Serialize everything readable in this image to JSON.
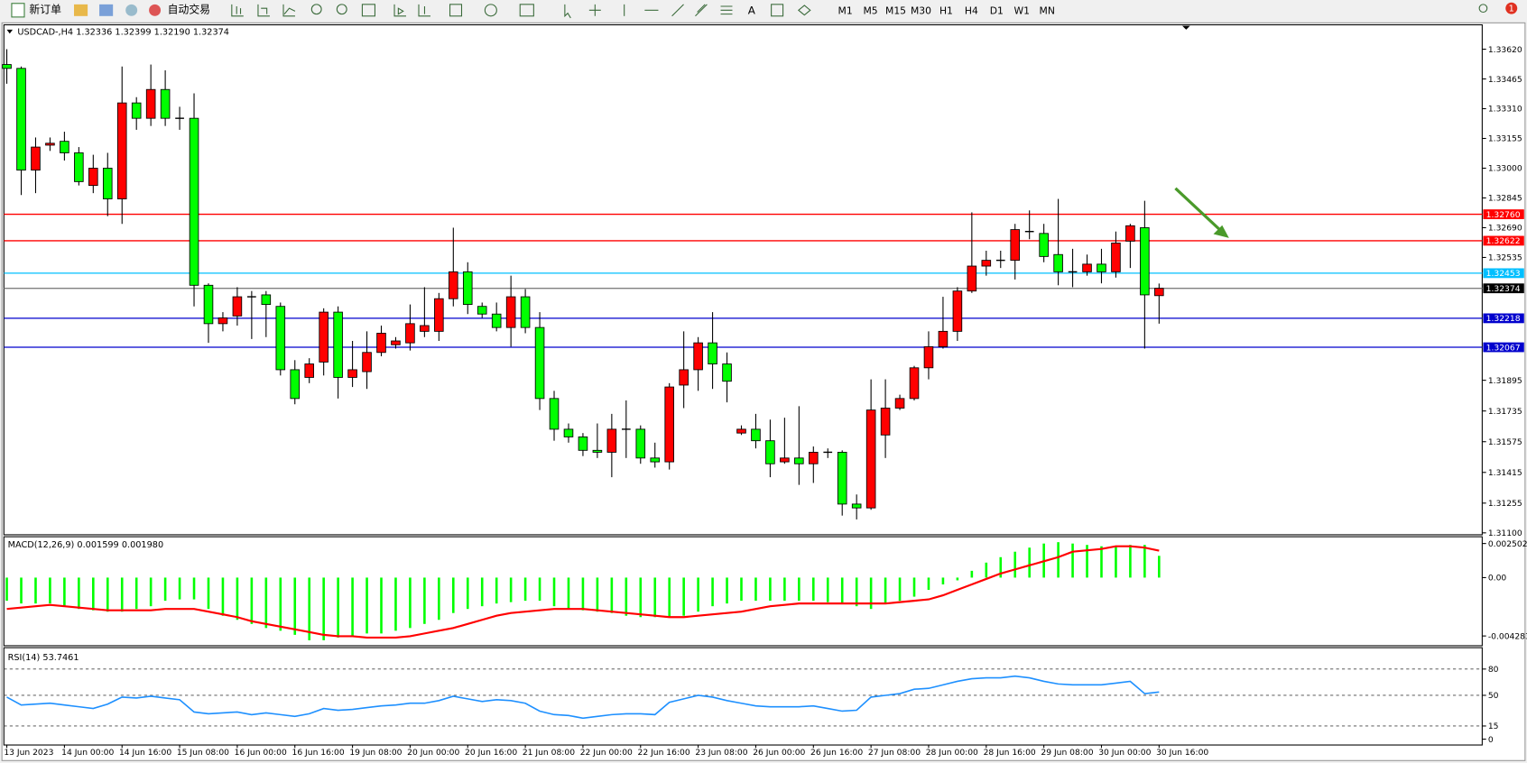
{
  "toolbar": {
    "new_order": "新订单",
    "auto_trading": "自动交易",
    "timeframes": [
      "M1",
      "M5",
      "M15",
      "M30",
      "H1",
      "H4",
      "D1",
      "W1",
      "MN"
    ],
    "badge": "1"
  },
  "chart_data": [
    {
      "type": "candlestick",
      "title": "USDCAD-,H4",
      "last_labels": [
        "1.32336",
        "1.32399",
        "1.32190",
        "1.32374"
      ],
      "categories": [
        "13 Jun 2023",
        null,
        null,
        null,
        "14 Jun 00:00",
        null,
        null,
        null,
        "14 Jun 16:00",
        null,
        null,
        null,
        "15 Jun 08:00",
        null,
        null,
        null,
        "16 Jun 00:00",
        null,
        null,
        null,
        "16 Jun 16:00",
        null,
        null,
        null,
        "19 Jun 08:00",
        null,
        null,
        null,
        "20 Jun 00:00",
        null,
        null,
        null,
        "20 Jun 16:00",
        null,
        null,
        null,
        "21 Jun 08:00",
        null,
        null,
        null,
        "22 Jun 00:00",
        null,
        null,
        null,
        "22 Jun 16:00",
        null,
        null,
        null,
        "23 Jun 08:00",
        null,
        null,
        null,
        "26 Jun 00:00",
        null,
        null,
        null,
        "26 Jun 16:00",
        null,
        null,
        null,
        "27 Jun 08:00",
        null,
        null,
        null,
        "28 Jun 00:00",
        null,
        null,
        null,
        "28 Jun 16:00",
        null,
        null,
        null,
        "29 Jun 08:00",
        null,
        null,
        null,
        "30 Jun 00:00",
        null,
        null,
        null,
        "30 Jun 16:00"
      ],
      "open": [
        1.3354,
        1.3352,
        1.3299,
        1.3312,
        1.3314,
        1.3308,
        1.3291,
        1.33,
        1.3284,
        1.3334,
        1.3326,
        1.3341,
        1.3326,
        1.3326,
        1.3239,
        1.3219,
        1.3223,
        1.3233,
        1.3234,
        1.3228,
        1.3195,
        1.3191,
        1.3199,
        1.3225,
        1.3191,
        1.3194,
        1.3204,
        1.3208,
        1.3209,
        1.3215,
        1.3215,
        1.3232,
        1.3246,
        1.3228,
        1.3224,
        1.3217,
        1.3233,
        1.3217,
        1.318,
        1.3164,
        1.316,
        1.3153,
        1.3152,
        1.3164,
        1.3164,
        1.3149,
        1.3147,
        1.3187,
        1.3195,
        1.3209,
        1.3198,
        1.3162,
        1.3164,
        1.3158,
        1.3147,
        1.3149,
        1.3146,
        1.3152,
        1.3152,
        1.3125,
        1.3123,
        1.3161,
        1.3175,
        1.318,
        1.3196,
        1.3207,
        1.3215,
        1.3236,
        1.3249,
        1.3252,
        1.3252,
        1.3267,
        1.3266,
        1.3255,
        1.3246,
        1.3246,
        1.325,
        1.3246,
        1.3262,
        1.3269,
        1.32336
      ],
      "high": [
        1.3362,
        1.3353,
        1.3316,
        1.3316,
        1.3319,
        1.3311,
        1.3307,
        1.3308,
        1.3353,
        1.3337,
        1.3354,
        1.3351,
        1.3332,
        1.3339,
        1.324,
        1.3225,
        1.3238,
        1.3236,
        1.3236,
        1.323,
        1.32,
        1.3201,
        1.3227,
        1.3228,
        1.321,
        1.3215,
        1.3218,
        1.3212,
        1.3229,
        1.3238,
        1.3235,
        1.3269,
        1.3251,
        1.323,
        1.323,
        1.3244,
        1.3237,
        1.3225,
        1.3184,
        1.3167,
        1.3162,
        1.3167,
        1.3172,
        1.3179,
        1.3166,
        1.3157,
        1.3188,
        1.3215,
        1.3212,
        1.3225,
        1.3204,
        1.3166,
        1.3172,
        1.3169,
        1.317,
        1.3176,
        1.3155,
        1.3154,
        1.3153,
        1.313,
        1.319,
        1.319,
        1.3182,
        1.3197,
        1.3215,
        1.3233,
        1.3238,
        1.3277,
        1.3257,
        1.3257,
        1.3271,
        1.3278,
        1.3271,
        1.3284,
        1.3258,
        1.3255,
        1.3258,
        1.3267,
        1.3271,
        1.3283,
        1.32399
      ],
      "low": [
        1.3344,
        1.3286,
        1.3287,
        1.3309,
        1.3304,
        1.3291,
        1.3287,
        1.3275,
        1.3271,
        1.332,
        1.3322,
        1.3322,
        1.332,
        1.3228,
        1.3209,
        1.3215,
        1.3218,
        1.3211,
        1.3212,
        1.3192,
        1.3177,
        1.3188,
        1.3192,
        1.318,
        1.3186,
        1.3185,
        1.3202,
        1.3206,
        1.3205,
        1.3212,
        1.321,
        1.3228,
        1.3224,
        1.3222,
        1.3215,
        1.3207,
        1.3214,
        1.3174,
        1.3158,
        1.3157,
        1.315,
        1.3149,
        1.3139,
        1.3149,
        1.3146,
        1.3144,
        1.3143,
        1.3175,
        1.3184,
        1.3185,
        1.3178,
        1.3161,
        1.3154,
        1.3139,
        1.3146,
        1.3135,
        1.3136,
        1.3149,
        1.3119,
        1.3117,
        1.3122,
        1.3149,
        1.3174,
        1.3179,
        1.319,
        1.3206,
        1.321,
        1.3235,
        1.3244,
        1.3248,
        1.3242,
        1.3263,
        1.3251,
        1.3239,
        1.3238,
        1.3244,
        1.324,
        1.3243,
        1.3248,
        1.3206,
        1.3219
      ],
      "close": [
        1.3352,
        1.3299,
        1.3311,
        1.3313,
        1.3308,
        1.3293,
        1.33,
        1.3284,
        1.3334,
        1.3326,
        1.3341,
        1.3326,
        1.3326,
        1.3239,
        1.3219,
        1.3222,
        1.3233,
        1.3233,
        1.3229,
        1.3195,
        1.318,
        1.3198,
        1.3225,
        1.3191,
        1.3195,
        1.3204,
        1.3214,
        1.321,
        1.3219,
        1.3218,
        1.3232,
        1.3246,
        1.3229,
        1.3224,
        1.3217,
        1.3233,
        1.3217,
        1.318,
        1.3164,
        1.316,
        1.3153,
        1.3152,
        1.3164,
        1.3164,
        1.3149,
        1.3147,
        1.3186,
        1.3195,
        1.3209,
        1.3198,
        1.3189,
        1.3164,
        1.3158,
        1.3146,
        1.3149,
        1.3146,
        1.3152,
        1.3152,
        1.3125,
        1.3123,
        1.3174,
        1.3175,
        1.318,
        1.3196,
        1.3207,
        1.3215,
        1.3236,
        1.3249,
        1.3252,
        1.3252,
        1.3268,
        1.3267,
        1.3254,
        1.3246,
        1.3246,
        1.325,
        1.3246,
        1.3261,
        1.327,
        1.3234,
        1.32374
      ],
      "up_color": "#ff0000",
      "down_color": "#00ff00",
      "doji_color": "#000000",
      "ylim": [
        1.3109,
        1.33747
      ],
      "yticks": [
        {
          "value": 1.3362,
          "label": "1.33620"
        },
        1.33465,
        {
          "value": 1.3331,
          "label": "1.33310"
        },
        1.33155,
        {
          "value": 1.33,
          "label": "1.33000"
        },
        1.32845,
        {
          "value": 1.3269,
          "label": "1.32690"
        },
        1.32535,
        1.31895,
        1.31735,
        1.31575,
        1.31415,
        1.31255,
        {
          "value": 1.311,
          "label": "1.31100"
        }
      ],
      "levels": [
        {
          "value": 1.3276,
          "label": "1.32760",
          "color": "#ff0000",
          "box_color": "#ff0000"
        },
        {
          "value": 1.32622,
          "label": "1.32622",
          "color": "#ff0000",
          "box_color": "#ff0000"
        },
        {
          "value": 1.32453,
          "label": "1.32453",
          "color": "#00bfff",
          "box_color": "#00bfff"
        },
        {
          "value": 1.32374,
          "label": "1.32374",
          "color": "#808080",
          "box_color": "#000000"
        },
        {
          "value": 1.32218,
          "label": "1.32218",
          "color": "#0000cd",
          "box_color": "#0000cd"
        },
        {
          "value": 1.32067,
          "label": "1.32067",
          "color": "#0000cd",
          "box_color": "#0000cd"
        }
      ]
    },
    {
      "type": "macd",
      "title": "MACD(12,26,9)",
      "last_labels": [
        "0.001599",
        "0.001980"
      ],
      "histogram": {
        "color": "#00ff00",
        "values": [
          -0.0017,
          -0.0019,
          -0.0019,
          -0.0019,
          -0.0021,
          -0.0023,
          -0.0024,
          -0.0025,
          -0.0025,
          -0.0023,
          -0.0021,
          -0.0017,
          -0.0016,
          -0.0016,
          -0.0023,
          -0.0028,
          -0.0031,
          -0.0034,
          -0.0037,
          -0.0039,
          -0.0042,
          -0.0046,
          -0.0046,
          -0.0044,
          -0.0043,
          -0.0041,
          -0.0041,
          -0.0039,
          -0.0037,
          -0.0034,
          -0.0031,
          -0.0026,
          -0.0023,
          -0.0021,
          -0.0019,
          -0.0018,
          -0.0017,
          -0.0017,
          -0.0021,
          -0.0023,
          -0.0024,
          -0.0025,
          -0.0026,
          -0.0028,
          -0.0029,
          -0.0029,
          -0.0029,
          -0.0028,
          -0.0025,
          -0.0021,
          -0.0019,
          -0.0017,
          -0.0017,
          -0.0017,
          -0.0017,
          -0.0017,
          -0.0017,
          -0.0018,
          -0.0019,
          -0.0021,
          -0.0023,
          -0.0019,
          -0.0017,
          -0.0014,
          -0.0009,
          -0.0005,
          -0.0002,
          0.0005,
          0.0011,
          0.0015,
          0.0019,
          0.0022,
          0.0025,
          0.0026,
          0.0025,
          0.0024,
          0.0023,
          0.0023,
          0.0024,
          0.0024,
          0.001599
        ]
      },
      "signal": {
        "color": "#ff0000",
        "values": [
          -0.0023,
          -0.0022,
          -0.0021,
          -0.002,
          -0.0021,
          -0.0022,
          -0.0023,
          -0.0024,
          -0.0024,
          -0.0024,
          -0.0024,
          -0.0023,
          -0.0023,
          -0.0023,
          -0.0025,
          -0.0027,
          -0.0029,
          -0.0032,
          -0.0034,
          -0.0036,
          -0.0038,
          -0.004,
          -0.0042,
          -0.0043,
          -0.0043,
          -0.0044,
          -0.0044,
          -0.0044,
          -0.0043,
          -0.0041,
          -0.0039,
          -0.0037,
          -0.0034,
          -0.0031,
          -0.0028,
          -0.0026,
          -0.0025,
          -0.0024,
          -0.0023,
          -0.0023,
          -0.0023,
          -0.0024,
          -0.0025,
          -0.0026,
          -0.0027,
          -0.0028,
          -0.0029,
          -0.0029,
          -0.0028,
          -0.0027,
          -0.0026,
          -0.0025,
          -0.0023,
          -0.0021,
          -0.002,
          -0.0019,
          -0.0019,
          -0.0019,
          -0.0019,
          -0.0019,
          -0.0019,
          -0.0019,
          -0.0018,
          -0.0017,
          -0.0016,
          -0.0013,
          -0.0009,
          -0.0005,
          -0.0001,
          0.0003,
          0.0006,
          0.0009,
          0.0012,
          0.0015,
          0.0019,
          0.002,
          0.0021,
          0.0023,
          0.0023,
          0.0022,
          0.00198
        ]
      },
      "ylim": [
        -0.005,
        0.003
      ],
      "yticks": [
        0.002502,
        {
          "value": 0,
          "label": "0.00"
        },
        -0.004283
      ]
    },
    {
      "type": "line",
      "title": "RSI(14)",
      "color": "#1e90ff",
      "values": [
        48,
        39,
        40,
        41,
        39,
        37,
        35,
        40,
        48,
        47,
        49,
        47,
        45,
        31,
        29,
        30,
        31,
        28,
        30,
        28,
        26,
        29,
        35,
        33,
        34,
        36,
        38,
        39,
        41,
        41,
        44,
        49,
        46,
        43,
        45,
        44,
        41,
        32,
        28,
        27,
        24,
        26,
        28,
        29,
        29,
        28,
        42,
        46,
        50,
        48,
        44,
        41,
        38,
        37,
        37,
        37,
        38,
        35,
        32,
        33,
        48,
        50,
        52,
        57,
        58,
        62,
        66,
        69,
        70,
        70,
        72,
        70,
        66,
        63,
        62,
        62,
        62,
        64,
        66,
        52,
        53.7461
      ],
      "ylim": [
        -6.7,
        104.4
      ],
      "yticks": [
        80,
        50,
        15,
        0
      ],
      "levels": [
        80,
        50,
        15
      ]
    }
  ]
}
